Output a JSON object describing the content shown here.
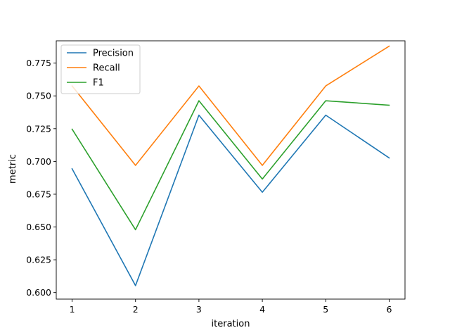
{
  "chart_data": {
    "type": "line",
    "title": "",
    "xlabel": "iteration",
    "ylabel": "metric",
    "x": [
      1,
      2,
      3,
      4,
      5,
      6
    ],
    "xlim": [
      0.75,
      6.25
    ],
    "ylim": [
      0.595,
      0.792
    ],
    "x_ticks": [
      1,
      2,
      3,
      4,
      5,
      6
    ],
    "y_ticks": [
      0.6,
      0.625,
      0.65,
      0.675,
      0.7,
      0.725,
      0.75,
      0.775
    ],
    "y_tick_labels": [
      "0.600",
      "0.625",
      "0.650",
      "0.675",
      "0.700",
      "0.725",
      "0.750",
      "0.775"
    ],
    "grid": false,
    "legend_position": "upper-left",
    "series": [
      {
        "name": "Precision",
        "color": "#1f77b4",
        "values": [
          0.6944,
          0.6053,
          0.7353,
          0.6765,
          0.7353,
          0.7027
        ]
      },
      {
        "name": "Recall",
        "color": "#ff7f0e",
        "values": [
          0.7576,
          0.697,
          0.7576,
          0.697,
          0.7576,
          0.7879
        ]
      },
      {
        "name": "F1",
        "color": "#2ca02c",
        "values": [
          0.7246,
          0.6479,
          0.7463,
          0.6866,
          0.7463,
          0.7429
        ]
      }
    ]
  }
}
